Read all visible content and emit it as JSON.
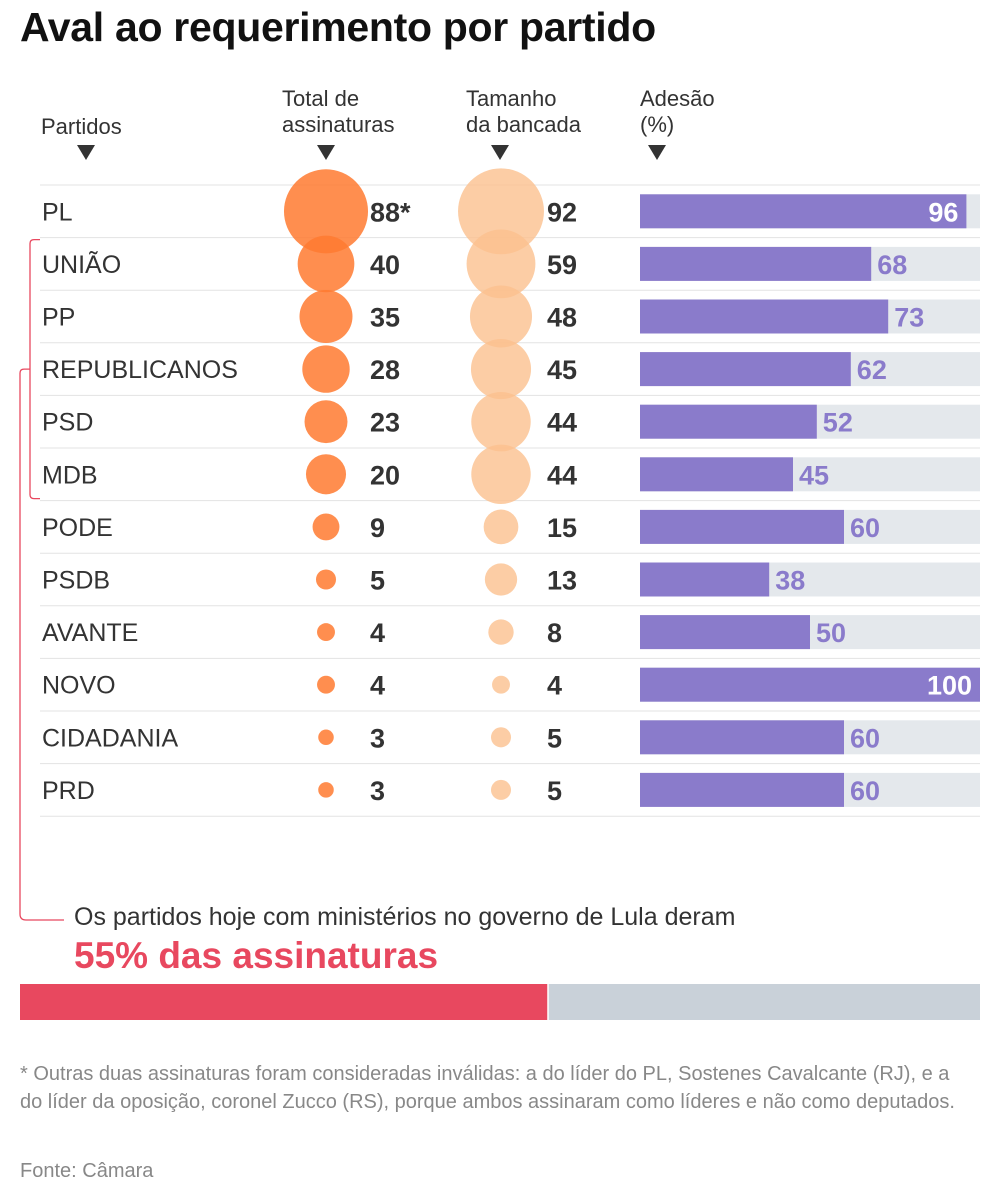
{
  "title": "Aval ao requerimento por partido",
  "headers": {
    "party": "Partidos",
    "signatures": [
      "Total de",
      "assinaturas"
    ],
    "bench": [
      "Tamanho",
      "da bancada"
    ],
    "adhesion": [
      "Adesão",
      "(%)"
    ]
  },
  "chart_data": {
    "type": "table",
    "columns": [
      "Partidos",
      "Total de assinaturas",
      "Tamanho da bancada",
      "Adesão (%)"
    ],
    "rows": [
      {
        "party": "PL",
        "signatures": 88,
        "signatures_label": "88*",
        "bench": 92,
        "adhesion": 96
      },
      {
        "party": "UNIÃO",
        "signatures": 40,
        "signatures_label": "40",
        "bench": 59,
        "adhesion": 68
      },
      {
        "party": "PP",
        "signatures": 35,
        "signatures_label": "35",
        "bench": 48,
        "adhesion": 73
      },
      {
        "party": "REPUBLICANOS",
        "signatures": 28,
        "signatures_label": "28",
        "bench": 45,
        "adhesion": 62
      },
      {
        "party": "PSD",
        "signatures": 23,
        "signatures_label": "23",
        "bench": 44,
        "adhesion": 52
      },
      {
        "party": "MDB",
        "signatures": 20,
        "signatures_label": "20",
        "bench": 44,
        "adhesion": 45
      },
      {
        "party": "PODE",
        "signatures": 9,
        "signatures_label": "9",
        "bench": 15,
        "adhesion": 60
      },
      {
        "party": "PSDB",
        "signatures": 5,
        "signatures_label": "5",
        "bench": 13,
        "adhesion": 38
      },
      {
        "party": "AVANTE",
        "signatures": 4,
        "signatures_label": "4",
        "bench": 8,
        "adhesion": 50
      },
      {
        "party": "NOVO",
        "signatures": 4,
        "signatures_label": "4",
        "bench": 4,
        "adhesion": 100
      },
      {
        "party": "CIDADANIA",
        "signatures": 3,
        "signatures_label": "3",
        "bench": 5,
        "adhesion": 60
      },
      {
        "party": "PRD",
        "signatures": 3,
        "signatures_label": "3",
        "bench": 5,
        "adhesion": 60
      }
    ],
    "bracketed_parties": [
      "UNIÃO",
      "PP",
      "REPUBLICANOS",
      "PSD",
      "MDB"
    ],
    "adhesion_range": [
      0,
      100
    ],
    "summary_share": 55
  },
  "colors": {
    "signatures": "#ff7a30",
    "bench": "#fbc08f",
    "bar": "#8a7bcb",
    "bar_bg": "#e4e8ec",
    "highlight": "#e8485f",
    "summary_bg": "#c9d1d9"
  },
  "summary": {
    "text": "Os partidos  hoje com ministérios no governo de Lula deram",
    "highlight": "55% das assinaturas"
  },
  "note": "* Outras duas assinaturas foram consideradas inválidas: a do líder do PL, Sostenes Cavalcante (RJ), e a do líder da oposição, coronel Zucco (RS), porque ambos assinaram como líderes e não como deputados.",
  "source": "Fonte: Câmara"
}
